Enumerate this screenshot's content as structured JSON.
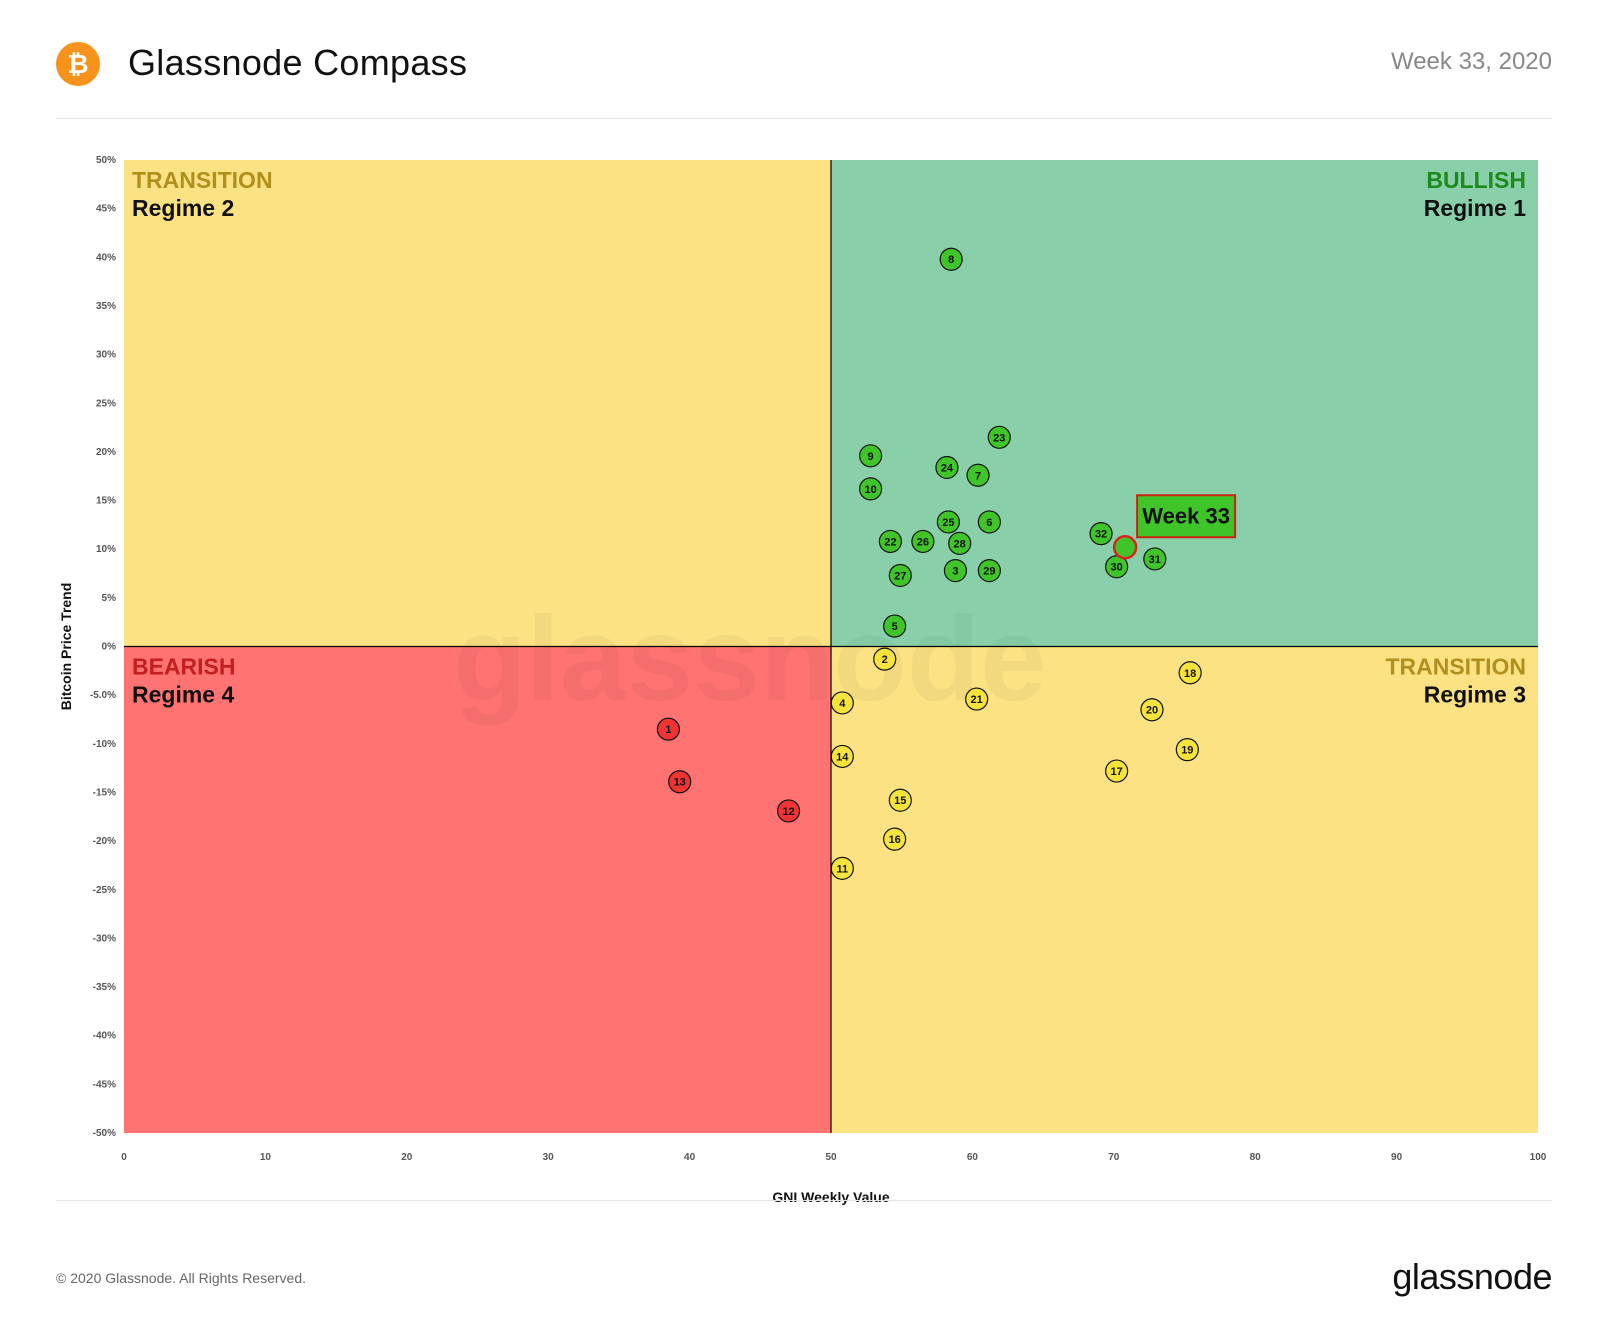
{
  "header": {
    "logo_glyph": "₿",
    "title": "Glassnode Compass",
    "week": "Week 33, 2020"
  },
  "footer": {
    "copyright": "© 2020 Glassnode. All Rights Reserved.",
    "brand": "glassnode"
  },
  "watermark": "glassnode",
  "colors": {
    "green_zone": "#89d0aa",
    "yellow_zone": "#fde283",
    "red_zone": "#ff7373",
    "green_point": "#3fc42a",
    "yellow_point": "#f6e43c",
    "red_point": "#ef3434",
    "bullish_text": "#1e8a1e",
    "transition_text": "#b08f1e",
    "bearish_text": "#c41e1e",
    "brand_orange": "#f7931a"
  },
  "chart_data": {
    "type": "scatter",
    "xlabel": "GNI  Weekly Value",
    "ylabel": "Bitcoin  Price Trend",
    "xlim": [
      0,
      100
    ],
    "ylim": [
      -50,
      50
    ],
    "x_ticks": [
      0,
      10,
      20,
      30,
      40,
      50,
      60,
      70,
      80,
      90,
      100
    ],
    "y_ticks": [
      {
        "value": 50,
        "label": "50%"
      },
      {
        "value": 45,
        "label": "45%"
      },
      {
        "value": 40,
        "label": "40%"
      },
      {
        "value": 35,
        "label": "35%"
      },
      {
        "value": 30,
        "label": "30%"
      },
      {
        "value": 25,
        "label": "25%"
      },
      {
        "value": 20,
        "label": "20%"
      },
      {
        "value": 15,
        "label": "15%"
      },
      {
        "value": 10,
        "label": "10%"
      },
      {
        "value": 5,
        "label": "5%"
      },
      {
        "value": 0,
        "label": "0%"
      },
      {
        "value": -5,
        "label": "-5.0%"
      },
      {
        "value": -10,
        "label": "-10%"
      },
      {
        "value": -15,
        "label": "-15%"
      },
      {
        "value": -20,
        "label": "-20%"
      },
      {
        "value": -25,
        "label": "-25%"
      },
      {
        "value": -30,
        "label": "-30%"
      },
      {
        "value": -35,
        "label": "-35%"
      },
      {
        "value": -40,
        "label": "-40%"
      },
      {
        "value": -45,
        "label": "-45%"
      },
      {
        "value": -50,
        "label": "-50%"
      }
    ],
    "quadrant_split": {
      "x": 50,
      "y": 0
    },
    "quadrants": [
      {
        "id": "top-left",
        "name": "TRANSITION",
        "regime": "Regime 2",
        "zone": "yellow"
      },
      {
        "id": "top-right",
        "name": "BULLISH",
        "regime": "Regime 1",
        "zone": "green"
      },
      {
        "id": "bottom-left",
        "name": "BEARISH",
        "regime": "Regime 4",
        "zone": "red"
      },
      {
        "id": "bottom-right",
        "name": "TRANSITION",
        "regime": "Regime 3",
        "zone": "yellow"
      }
    ],
    "points": [
      {
        "label": "1",
        "x": 38.5,
        "y": -8.5,
        "zone": "red"
      },
      {
        "label": "2",
        "x": 53.8,
        "y": -1.3,
        "zone": "yellow"
      },
      {
        "label": "3",
        "x": 58.8,
        "y": 7.8,
        "zone": "green"
      },
      {
        "label": "4",
        "x": 50.8,
        "y": -5.8,
        "zone": "yellow"
      },
      {
        "label": "5",
        "x": 54.5,
        "y": 2.1,
        "zone": "green"
      },
      {
        "label": "6",
        "x": 61.2,
        "y": 12.8,
        "zone": "green"
      },
      {
        "label": "7",
        "x": 60.4,
        "y": 17.6,
        "zone": "green"
      },
      {
        "label": "8",
        "x": 58.5,
        "y": 39.8,
        "zone": "green"
      },
      {
        "label": "9",
        "x": 52.8,
        "y": 19.6,
        "zone": "green"
      },
      {
        "label": "10",
        "x": 52.8,
        "y": 16.2,
        "zone": "green"
      },
      {
        "label": "11",
        "x": 50.8,
        "y": -22.8,
        "zone": "yellow"
      },
      {
        "label": "12",
        "x": 47.0,
        "y": -16.9,
        "zone": "red"
      },
      {
        "label": "13",
        "x": 39.3,
        "y": -13.9,
        "zone": "red"
      },
      {
        "label": "14",
        "x": 50.8,
        "y": -11.3,
        "zone": "yellow"
      },
      {
        "label": "15",
        "x": 54.9,
        "y": -15.8,
        "zone": "yellow"
      },
      {
        "label": "16",
        "x": 54.5,
        "y": -19.8,
        "zone": "yellow"
      },
      {
        "label": "17",
        "x": 70.2,
        "y": -12.8,
        "zone": "yellow"
      },
      {
        "label": "18",
        "x": 75.4,
        "y": -2.7,
        "zone": "yellow"
      },
      {
        "label": "19",
        "x": 75.2,
        "y": -10.6,
        "zone": "yellow"
      },
      {
        "label": "20",
        "x": 72.7,
        "y": -6.5,
        "zone": "yellow"
      },
      {
        "label": "21",
        "x": 60.3,
        "y": -5.4,
        "zone": "yellow"
      },
      {
        "label": "22",
        "x": 54.2,
        "y": 10.8,
        "zone": "green"
      },
      {
        "label": "23",
        "x": 61.9,
        "y": 21.5,
        "zone": "green"
      },
      {
        "label": "24",
        "x": 58.2,
        "y": 18.4,
        "zone": "green"
      },
      {
        "label": "25",
        "x": 58.3,
        "y": 12.8,
        "zone": "green"
      },
      {
        "label": "26",
        "x": 56.5,
        "y": 10.8,
        "zone": "green"
      },
      {
        "label": "27",
        "x": 54.9,
        "y": 7.3,
        "zone": "green"
      },
      {
        "label": "28",
        "x": 59.1,
        "y": 10.6,
        "zone": "green"
      },
      {
        "label": "29",
        "x": 61.2,
        "y": 7.8,
        "zone": "green"
      },
      {
        "label": "30",
        "x": 70.2,
        "y": 8.2,
        "zone": "green"
      },
      {
        "label": "31",
        "x": 72.9,
        "y": 9.0,
        "zone": "green"
      },
      {
        "label": "32",
        "x": 69.1,
        "y": 11.6,
        "zone": "green"
      }
    ],
    "current_week": {
      "label": "Week 33",
      "x": 70.8,
      "y": 10.2
    }
  }
}
